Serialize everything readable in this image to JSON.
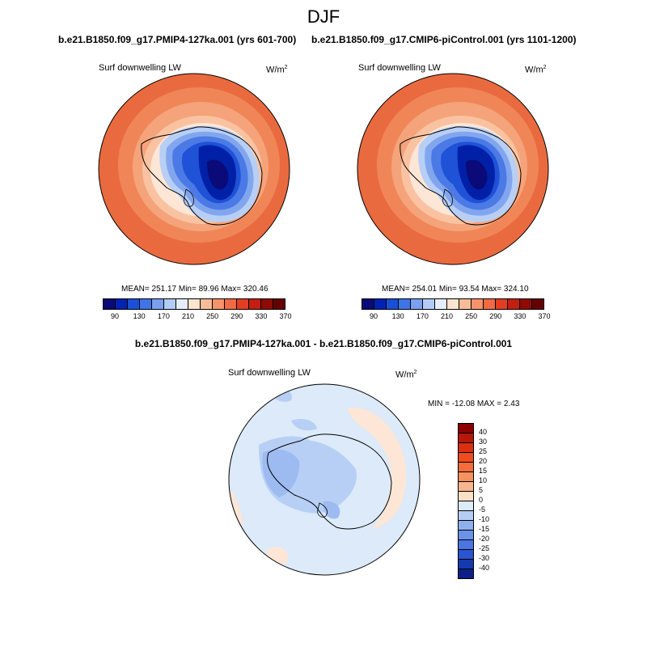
{
  "figure": {
    "season": "DJF",
    "variable_label": "Surf downwelling LW",
    "units_base": "W/m",
    "units_exp": "2"
  },
  "panel_left": {
    "title": "b.e21.B1850.f09_g17.PMIP4-127ka.001 (yrs 601-700)",
    "stats": "MEAN= 251.17  Min=  89.96  Max= 320.46"
  },
  "panel_right": {
    "title": "b.e21.B1850.f09_g17.CMIP6-piControl.001 (yrs 1101-1200)",
    "stats": "MEAN= 254.01  Min=  93.54  Max= 324.10"
  },
  "panel_diff": {
    "title": "b.e21.B1850.f09_g17.PMIP4-127ka.001 - b.e21.B1850.f09_g17.CMIP6-piControl.001",
    "stats": "MIN = -12.08 MAX =   2.43"
  },
  "colorbar_main": {
    "colors": [
      "#0a0a78",
      "#0022b4",
      "#1a4fd8",
      "#3f73e8",
      "#7aa0ef",
      "#b3ccf5",
      "#e6eefb",
      "#fde3d0",
      "#f9bc98",
      "#f7936a",
      "#f26a43",
      "#e33e21",
      "#c41e10",
      "#8f0a04",
      "#650000"
    ],
    "labels": [
      "90",
      "130",
      "170",
      "210",
      "250",
      "290",
      "330",
      "370"
    ]
  },
  "colorbar_diff": {
    "colors": [
      "#8b0000",
      "#b5170a",
      "#d9300f",
      "#ee4b1f",
      "#f46d3b",
      "#f7915f",
      "#f9b58e",
      "#fde0c6",
      "#dceaf9",
      "#b5cdf4",
      "#8fb0ef",
      "#6a92ea",
      "#4a75e3",
      "#2c54d0",
      "#153aae",
      "#0a2088"
    ],
    "labels": [
      "40",
      "30",
      "25",
      "20",
      "15",
      "10",
      "5",
      "0",
      "-5",
      "-10",
      "-15",
      "-20",
      "-25",
      "-30",
      "-40"
    ]
  }
}
